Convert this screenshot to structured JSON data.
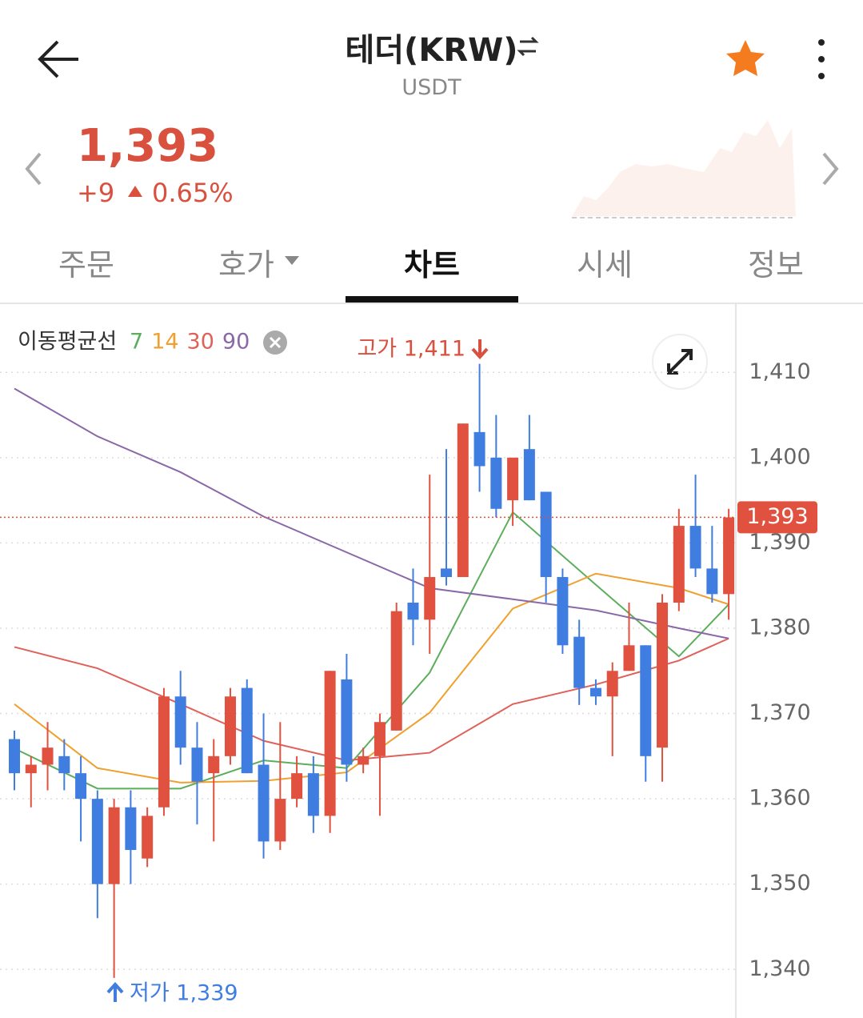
{
  "header": {
    "title": "테더(KRW)",
    "subtitle": "USDT"
  },
  "price": {
    "value": "1,393",
    "change": "+9",
    "change_rate": "0.65%"
  },
  "tabs": [
    "주문",
    "호가",
    "차트",
    "시세",
    "정보"
  ],
  "chart_data": {
    "type": "candlestick",
    "ma_legend_title": "이동평균선",
    "up_color": "#e0513f",
    "down_color": "#3f7ee0",
    "open": [
      1367,
      1363,
      1364,
      1365,
      1363,
      1360,
      1350,
      1359,
      1353,
      1359,
      1372,
      1366,
      1363,
      1365,
      1373,
      1364,
      1355,
      1360,
      1363,
      1358,
      1374,
      1364,
      1365,
      1368,
      1383,
      1381,
      1387,
      1386,
      1403,
      1400,
      1395,
      1401,
      1396,
      1386,
      1379,
      1373,
      1372,
      1375,
      1378,
      1366,
      1383,
      1392,
      1387,
      1384
    ],
    "high": [
      1368,
      1365,
      1369,
      1367,
      1365,
      1361,
      1360,
      1361,
      1359,
      1373,
      1375,
      1369,
      1367,
      1373,
      1374,
      1370,
      1369,
      1365,
      1365,
      1375,
      1377,
      1366,
      1370,
      1383,
      1387,
      1398,
      1401,
      1404,
      1411,
      1405,
      1400,
      1405,
      1396,
      1387,
      1381,
      1374,
      1376,
      1383,
      1378,
      1384,
      1394,
      1398,
      1392,
      1394
    ],
    "low": [
      1361,
      1359,
      1361,
      1361,
      1355,
      1346,
      1339,
      1350,
      1352,
      1358,
      1364,
      1357,
      1355,
      1364,
      1363,
      1353,
      1354,
      1359,
      1356,
      1356,
      1362,
      1363,
      1358,
      1368,
      1378,
      1377,
      1385,
      1386,
      1396,
      1393,
      1392,
      1395,
      1383,
      1377,
      1371,
      1371,
      1365,
      1375,
      1362,
      1362,
      1382,
      1386,
      1383,
      1381
    ],
    "close": [
      1363,
      1364,
      1366,
      1363,
      1360,
      1350,
      1359,
      1354,
      1358,
      1372,
      1366,
      1362,
      1365,
      1372,
      1363,
      1355,
      1360,
      1363,
      1358,
      1375,
      1364,
      1365,
      1369,
      1382,
      1381,
      1386,
      1386,
      1404,
      1399,
      1394,
      1400,
      1395,
      1386,
      1378,
      1373,
      1372,
      1375,
      1378,
      1365,
      1383,
      1392,
      1387,
      1384,
      1393
    ],
    "ma_series": [
      {
        "name": "7",
        "color": "#5cae5c",
        "x": [
          0,
          5,
          10,
          15,
          20,
          25,
          30,
          35,
          40,
          43
        ],
        "values": [
          1365.9,
          1361.2,
          1361.2,
          1364.5,
          1363.6,
          1374.8,
          1393.6,
          1385.1,
          1376.7,
          1382.8
        ]
      },
      {
        "name": "14",
        "color": "#f0a030",
        "x": [
          0,
          5,
          10,
          15,
          20,
          25,
          30,
          35,
          40,
          43
        ],
        "values": [
          1371.1,
          1363.6,
          1361.9,
          1362.1,
          1363.1,
          1370.1,
          1382.3,
          1386.4,
          1384.7,
          1382.8
        ]
      },
      {
        "name": "30",
        "color": "#e0605a",
        "x": [
          0,
          5,
          10,
          15,
          20,
          25,
          30,
          35,
          40,
          43
        ],
        "values": [
          1377.8,
          1375.3,
          1371.1,
          1366.8,
          1364.5,
          1365.4,
          1371.1,
          1373.4,
          1376.2,
          1378.8
        ]
      },
      {
        "name": "90",
        "color": "#8a68a8",
        "x": [
          0,
          5,
          10,
          15,
          20,
          25,
          30,
          35,
          40,
          43
        ],
        "values": [
          1408.1,
          1402.5,
          1398.3,
          1393.1,
          1388.9,
          1384.7,
          1383.4,
          1382.1,
          1380.0,
          1378.8
        ]
      }
    ],
    "annotations": [
      {
        "text": "고가 1,411"
      },
      {
        "text": "저가 1,339"
      }
    ],
    "last_price_label": "1,393",
    "ylim": [
      1334.3,
      1418
    ],
    "yticks": [
      {
        "value": 1340,
        "label": "1,340"
      },
      {
        "value": 1350,
        "label": "1,350"
      },
      {
        "value": 1360,
        "label": "1,360"
      },
      {
        "value": 1370,
        "label": "1,370"
      },
      {
        "value": 1380,
        "label": "1,380"
      },
      {
        "value": 1390,
        "label": "1,390"
      },
      {
        "value": 1400,
        "label": "1,400"
      },
      {
        "value": 1410,
        "label": "1,410"
      }
    ],
    "grid": true
  }
}
